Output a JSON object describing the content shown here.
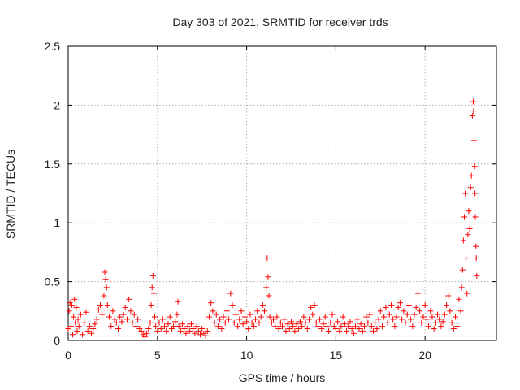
{
  "chart_data": {
    "type": "scatter",
    "title": "Day 303 of 2021, SRMTID for receiver trds",
    "xlabel": "GPS time / hours",
    "ylabel": "SRMTID / TECUs",
    "xlim": [
      0,
      24
    ],
    "ylim": [
      0,
      2.5
    ],
    "grid": true,
    "marker": "+",
    "marker_color": "#ff0000",
    "x_ticks": [
      0,
      5,
      10,
      15,
      20
    ],
    "x_tick_labels": [
      "0",
      "5",
      "10",
      "15",
      "20"
    ],
    "y_ticks": [
      0,
      0.5,
      1,
      1.5,
      2,
      2.5
    ],
    "y_tick_labels": [
      "0",
      "0.5",
      "1",
      "1.5",
      "2",
      "2.5"
    ],
    "series": [
      {
        "name": "SRMTID",
        "points": [
          [
            0.0,
            0.1
          ],
          [
            0.05,
            0.25
          ],
          [
            0.1,
            0.32
          ],
          [
            0.15,
            0.12
          ],
          [
            0.2,
            0.3
          ],
          [
            0.25,
            0.05
          ],
          [
            0.3,
            0.2
          ],
          [
            0.35,
            0.35
          ],
          [
            0.4,
            0.15
          ],
          [
            0.45,
            0.28
          ],
          [
            0.5,
            0.08
          ],
          [
            0.55,
            0.18
          ],
          [
            0.6,
            0.12
          ],
          [
            0.7,
            0.22
          ],
          [
            0.8,
            0.05
          ],
          [
            0.9,
            0.15
          ],
          [
            1.0,
            0.24
          ],
          [
            1.1,
            0.08
          ],
          [
            1.2,
            0.12
          ],
          [
            1.3,
            0.06
          ],
          [
            1.4,
            0.1
          ],
          [
            1.5,
            0.14
          ],
          [
            1.6,
            0.18
          ],
          [
            1.7,
            0.26
          ],
          [
            1.8,
            0.3
          ],
          [
            1.9,
            0.22
          ],
          [
            2.0,
            0.38
          ],
          [
            2.05,
            0.58
          ],
          [
            2.1,
            0.52
          ],
          [
            2.15,
            0.45
          ],
          [
            2.2,
            0.3
          ],
          [
            2.3,
            0.2
          ],
          [
            2.4,
            0.12
          ],
          [
            2.5,
            0.25
          ],
          [
            2.6,
            0.18
          ],
          [
            2.7,
            0.15
          ],
          [
            2.8,
            0.1
          ],
          [
            2.9,
            0.2
          ],
          [
            3.0,
            0.16
          ],
          [
            3.1,
            0.22
          ],
          [
            3.2,
            0.28
          ],
          [
            3.3,
            0.18
          ],
          [
            3.4,
            0.35
          ],
          [
            3.5,
            0.25
          ],
          [
            3.6,
            0.15
          ],
          [
            3.7,
            0.22
          ],
          [
            3.8,
            0.12
          ],
          [
            3.9,
            0.18
          ],
          [
            4.0,
            0.1
          ],
          [
            4.1,
            0.08
          ],
          [
            4.2,
            0.05
          ],
          [
            4.3,
            0.03
          ],
          [
            4.4,
            0.06
          ],
          [
            4.5,
            0.1
          ],
          [
            4.6,
            0.15
          ],
          [
            4.65,
            0.3
          ],
          [
            4.7,
            0.45
          ],
          [
            4.75,
            0.55
          ],
          [
            4.8,
            0.4
          ],
          [
            4.85,
            0.2
          ],
          [
            4.9,
            0.12
          ],
          [
            5.0,
            0.08
          ],
          [
            5.1,
            0.15
          ],
          [
            5.2,
            0.1
          ],
          [
            5.3,
            0.18
          ],
          [
            5.4,
            0.12
          ],
          [
            5.5,
            0.08
          ],
          [
            5.6,
            0.14
          ],
          [
            5.7,
            0.2
          ],
          [
            5.8,
            0.1
          ],
          [
            5.9,
            0.12
          ],
          [
            6.0,
            0.16
          ],
          [
            6.1,
            0.22
          ],
          [
            6.15,
            0.33
          ],
          [
            6.2,
            0.12
          ],
          [
            6.3,
            0.08
          ],
          [
            6.4,
            0.14
          ],
          [
            6.5,
            0.1
          ],
          [
            6.6,
            0.06
          ],
          [
            6.7,
            0.12
          ],
          [
            6.8,
            0.08
          ],
          [
            6.9,
            0.14
          ],
          [
            7.0,
            0.1
          ],
          [
            7.1,
            0.06
          ],
          [
            7.2,
            0.12
          ],
          [
            7.3,
            0.08
          ],
          [
            7.4,
            0.05
          ],
          [
            7.5,
            0.1
          ],
          [
            7.6,
            0.06
          ],
          [
            7.7,
            0.04
          ],
          [
            7.8,
            0.08
          ],
          [
            7.9,
            0.2
          ],
          [
            8.0,
            0.32
          ],
          [
            8.1,
            0.25
          ],
          [
            8.2,
            0.15
          ],
          [
            8.3,
            0.22
          ],
          [
            8.4,
            0.12
          ],
          [
            8.5,
            0.18
          ],
          [
            8.6,
            0.1
          ],
          [
            8.7,
            0.2
          ],
          [
            8.8,
            0.15
          ],
          [
            8.9,
            0.25
          ],
          [
            9.0,
            0.18
          ],
          [
            9.1,
            0.4
          ],
          [
            9.2,
            0.3
          ],
          [
            9.3,
            0.15
          ],
          [
            9.4,
            0.22
          ],
          [
            9.5,
            0.12
          ],
          [
            9.6,
            0.18
          ],
          [
            9.7,
            0.25
          ],
          [
            9.8,
            0.14
          ],
          [
            9.9,
            0.2
          ],
          [
            10.0,
            0.16
          ],
          [
            10.1,
            0.1
          ],
          [
            10.2,
            0.22
          ],
          [
            10.3,
            0.15
          ],
          [
            10.4,
            0.12
          ],
          [
            10.5,
            0.18
          ],
          [
            10.6,
            0.25
          ],
          [
            10.7,
            0.15
          ],
          [
            10.8,
            0.2
          ],
          [
            10.9,
            0.3
          ],
          [
            11.0,
            0.25
          ],
          [
            11.1,
            0.45
          ],
          [
            11.15,
            0.7
          ],
          [
            11.2,
            0.54
          ],
          [
            11.25,
            0.38
          ],
          [
            11.3,
            0.2
          ],
          [
            11.4,
            0.15
          ],
          [
            11.5,
            0.18
          ],
          [
            11.6,
            0.12
          ],
          [
            11.7,
            0.2
          ],
          [
            11.8,
            0.1
          ],
          [
            11.9,
            0.15
          ],
          [
            12.0,
            0.12
          ],
          [
            12.1,
            0.18
          ],
          [
            12.2,
            0.08
          ],
          [
            12.3,
            0.14
          ],
          [
            12.4,
            0.1
          ],
          [
            12.5,
            0.16
          ],
          [
            12.6,
            0.12
          ],
          [
            12.7,
            0.08
          ],
          [
            12.8,
            0.14
          ],
          [
            12.9,
            0.1
          ],
          [
            13.0,
            0.16
          ],
          [
            13.1,
            0.12
          ],
          [
            13.2,
            0.2
          ],
          [
            13.3,
            0.15
          ],
          [
            13.4,
            0.1
          ],
          [
            13.5,
            0.18
          ],
          [
            13.6,
            0.28
          ],
          [
            13.7,
            0.22
          ],
          [
            13.8,
            0.3
          ],
          [
            13.9,
            0.15
          ],
          [
            14.0,
            0.12
          ],
          [
            14.1,
            0.18
          ],
          [
            14.2,
            0.1
          ],
          [
            14.3,
            0.14
          ],
          [
            14.4,
            0.2
          ],
          [
            14.5,
            0.12
          ],
          [
            14.6,
            0.08
          ],
          [
            14.7,
            0.15
          ],
          [
            14.8,
            0.22
          ],
          [
            14.9,
            0.12
          ],
          [
            15.0,
            0.1
          ],
          [
            15.1,
            0.16
          ],
          [
            15.2,
            0.08
          ],
          [
            15.3,
            0.12
          ],
          [
            15.4,
            0.2
          ],
          [
            15.5,
            0.14
          ],
          [
            15.6,
            0.08
          ],
          [
            15.7,
            0.12
          ],
          [
            15.8,
            0.16
          ],
          [
            15.9,
            0.1
          ],
          [
            16.0,
            0.06
          ],
          [
            16.1,
            0.12
          ],
          [
            16.2,
            0.18
          ],
          [
            16.3,
            0.1
          ],
          [
            16.4,
            0.14
          ],
          [
            16.5,
            0.08
          ],
          [
            16.6,
            0.12
          ],
          [
            16.7,
            0.2
          ],
          [
            16.8,
            0.15
          ],
          [
            16.9,
            0.22
          ],
          [
            17.0,
            0.12
          ],
          [
            17.1,
            0.08
          ],
          [
            17.2,
            0.15
          ],
          [
            17.3,
            0.1
          ],
          [
            17.4,
            0.18
          ],
          [
            17.5,
            0.25
          ],
          [
            17.6,
            0.12
          ],
          [
            17.7,
            0.2
          ],
          [
            17.8,
            0.28
          ],
          [
            17.9,
            0.15
          ],
          [
            18.0,
            0.22
          ],
          [
            18.1,
            0.3
          ],
          [
            18.2,
            0.18
          ],
          [
            18.3,
            0.12
          ],
          [
            18.4,
            0.2
          ],
          [
            18.5,
            0.28
          ],
          [
            18.6,
            0.32
          ],
          [
            18.7,
            0.18
          ],
          [
            18.8,
            0.25
          ],
          [
            18.9,
            0.15
          ],
          [
            19.0,
            0.22
          ],
          [
            19.1,
            0.3
          ],
          [
            19.2,
            0.18
          ],
          [
            19.3,
            0.12
          ],
          [
            19.4,
            0.22
          ],
          [
            19.5,
            0.28
          ],
          [
            19.6,
            0.4
          ],
          [
            19.7,
            0.25
          ],
          [
            19.8,
            0.15
          ],
          [
            19.9,
            0.2
          ],
          [
            20.0,
            0.3
          ],
          [
            20.1,
            0.18
          ],
          [
            20.2,
            0.12
          ],
          [
            20.3,
            0.25
          ],
          [
            20.4,
            0.2
          ],
          [
            20.5,
            0.1
          ],
          [
            20.6,
            0.15
          ],
          [
            20.7,
            0.22
          ],
          [
            20.8,
            0.18
          ],
          [
            20.9,
            0.12
          ],
          [
            21.0,
            0.16
          ],
          [
            21.1,
            0.22
          ],
          [
            21.2,
            0.3
          ],
          [
            21.3,
            0.38
          ],
          [
            21.4,
            0.25
          ],
          [
            21.5,
            0.15
          ],
          [
            21.6,
            0.1
          ],
          [
            21.7,
            0.2
          ],
          [
            21.8,
            0.12
          ],
          [
            21.9,
            0.35
          ],
          [
            22.0,
            0.25
          ],
          [
            22.05,
            0.45
          ],
          [
            22.1,
            0.6
          ],
          [
            22.15,
            0.85
          ],
          [
            22.2,
            1.05
          ],
          [
            22.25,
            1.25
          ],
          [
            22.3,
            0.7
          ],
          [
            22.35,
            0.4
          ],
          [
            22.4,
            0.9
          ],
          [
            22.45,
            1.1
          ],
          [
            22.5,
            0.95
          ],
          [
            22.55,
            1.3
          ],
          [
            22.6,
            1.4
          ],
          [
            22.65,
            1.91
          ],
          [
            22.7,
            2.03
          ],
          [
            22.72,
            1.95
          ],
          [
            22.75,
            1.7
          ],
          [
            22.78,
            1.48
          ],
          [
            22.8,
            1.25
          ],
          [
            22.82,
            1.05
          ],
          [
            22.85,
            0.8
          ],
          [
            22.87,
            0.7
          ],
          [
            22.9,
            0.55
          ]
        ]
      }
    ]
  }
}
